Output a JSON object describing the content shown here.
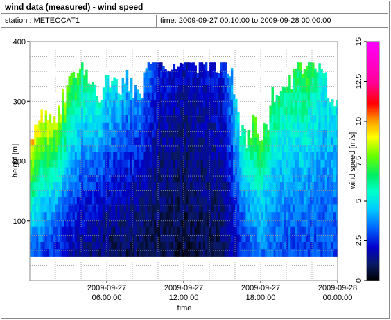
{
  "header": {
    "title": "wind data (measured) - wind speed",
    "station_label": "station : METEOCAT1",
    "time_label": "time: 2009-09-27 00:10:00 to 2009-09-28 00:00:00"
  },
  "chart_data": {
    "type": "heatmap",
    "title": "wind data (measured) - wind speed",
    "xlabel": "time",
    "ylabel": "height [m]",
    "colorbar_label": "wind speed [m/s]",
    "x_ticks": [
      {
        "value": 6,
        "line1": "2009-09-27",
        "line2": "06:00:00"
      },
      {
        "value": 12,
        "line1": "2009-09-27",
        "line2": "12:00:00"
      },
      {
        "value": 18,
        "line1": "2009-09-27",
        "line2": "18:00:00"
      },
      {
        "value": 24,
        "line1": "2009-09-28",
        "line2": "00:00:00"
      }
    ],
    "y_ticks": [
      {
        "value": 100,
        "label": "100"
      },
      {
        "value": 200,
        "label": "200"
      },
      {
        "value": 300,
        "label": "300"
      },
      {
        "value": 400,
        "label": "400"
      }
    ],
    "colorbar_ticks": [
      {
        "value": 0,
        "label": "0"
      },
      {
        "value": 2.5,
        "label": "2.5"
      },
      {
        "value": 5,
        "label": "5"
      },
      {
        "value": 7.5,
        "label": "7.5"
      },
      {
        "value": 10,
        "label": "10"
      },
      {
        "value": 12.5,
        "label": "12.5"
      },
      {
        "value": 15,
        "label": "15"
      }
    ],
    "colorbar_range": [
      0,
      15
    ],
    "xlim": [
      0,
      24
    ],
    "ylim": [
      0,
      400
    ],
    "grid": true,
    "time_step_hours": 0.1667,
    "height_range": [
      40,
      365
    ],
    "profile": {
      "top_height": [
        [
          0.0,
          230
        ],
        [
          0.5,
          270
        ],
        [
          1.0,
          285
        ],
        [
          1.5,
          275
        ],
        [
          2.0,
          255
        ],
        [
          2.5,
          300
        ],
        [
          3.0,
          320
        ],
        [
          3.5,
          345
        ],
        [
          4.0,
          370
        ],
        [
          4.5,
          330
        ],
        [
          5.0,
          320
        ],
        [
          5.5,
          305
        ],
        [
          6.0,
          340
        ],
        [
          6.5,
          345
        ],
        [
          7.0,
          325
        ],
        [
          7.5,
          345
        ],
        [
          8.0,
          320
        ],
        [
          8.5,
          300
        ],
        [
          9.0,
          350
        ],
        [
          9.5,
          370
        ],
        [
          10.0,
          365
        ],
        [
          12.0,
          365
        ],
        [
          15.5,
          365
        ],
        [
          16.0,
          320
        ],
        [
          16.5,
          250
        ],
        [
          17.0,
          230
        ],
        [
          17.5,
          270
        ],
        [
          18.0,
          240
        ],
        [
          18.5,
          255
        ],
        [
          19.0,
          315
        ],
        [
          19.5,
          305
        ],
        [
          20.0,
          320
        ],
        [
          20.5,
          340
        ],
        [
          21.0,
          370
        ],
        [
          21.5,
          345
        ],
        [
          22.0,
          370
        ],
        [
          22.5,
          360
        ],
        [
          23.0,
          335
        ],
        [
          23.5,
          300
        ],
        [
          24.0,
          290
        ]
      ],
      "speed_near_ground": [
        [
          0.0,
          3.5
        ],
        [
          2.0,
          2.5
        ],
        [
          4.0,
          1.5
        ],
        [
          6.0,
          1.0
        ],
        [
          9.0,
          0.8
        ],
        [
          12.0,
          0.7
        ],
        [
          15.0,
          1.0
        ],
        [
          16.5,
          2.5
        ],
        [
          18.0,
          3.5
        ],
        [
          20.0,
          3.0
        ],
        [
          22.0,
          2.8
        ],
        [
          24.0,
          3.0
        ]
      ],
      "speed_at_top": [
        [
          0.0,
          10.0
        ],
        [
          1.0,
          9.5
        ],
        [
          2.0,
          9.0
        ],
        [
          3.0,
          8.0
        ],
        [
          4.0,
          7.0
        ],
        [
          6.0,
          5.5
        ],
        [
          8.0,
          4.5
        ],
        [
          9.5,
          3.5
        ],
        [
          10.0,
          2.5
        ],
        [
          12.0,
          2.0
        ],
        [
          15.0,
          2.5
        ],
        [
          16.5,
          6.0
        ],
        [
          17.5,
          8.0
        ],
        [
          18.5,
          7.0
        ],
        [
          20.0,
          6.5
        ],
        [
          21.5,
          7.5
        ],
        [
          23.0,
          5.5
        ],
        [
          24.0,
          5.0
        ]
      ]
    }
  }
}
